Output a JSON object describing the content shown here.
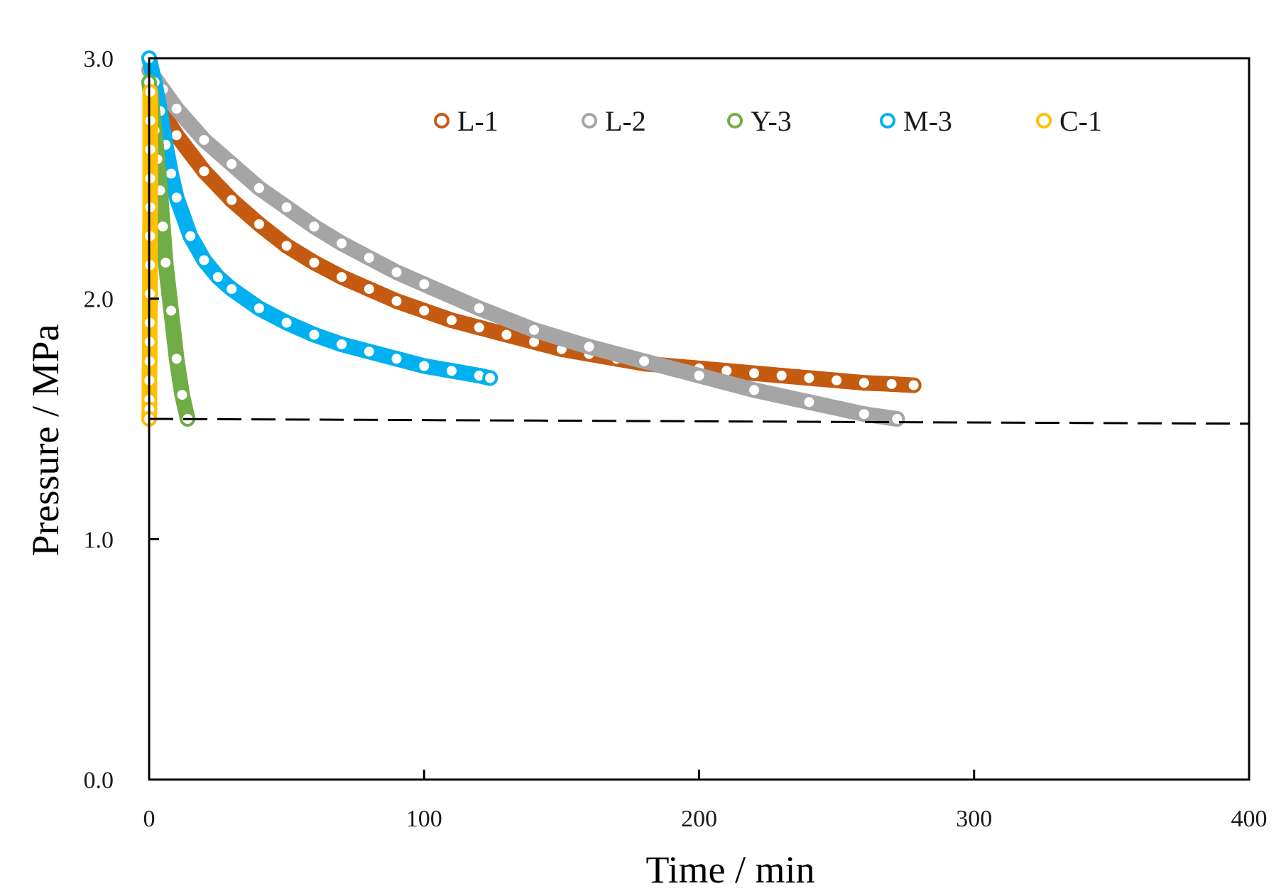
{
  "chart_data": {
    "type": "scatter",
    "title": "",
    "xlabel": "Time / min",
    "ylabel": "Pressure / MPa",
    "xlim": [
      0,
      400
    ],
    "ylim": [
      0,
      3.0
    ],
    "xticks": [
      0,
      100,
      200,
      300,
      400
    ],
    "xtick_labels": [
      "0",
      "100",
      "200",
      "300",
      "400"
    ],
    "yticks": [
      0,
      1.0,
      2.0,
      3.0
    ],
    "ytick_labels": [
      "0.0",
      "1.0",
      "2.0",
      "3.0"
    ],
    "grid": false,
    "legend_position": "top-center",
    "reference_line": {
      "style": "dashed",
      "y_start": 1.5,
      "y_end": 1.48,
      "x_range": [
        0,
        400
      ]
    },
    "series": [
      {
        "name": "L-1",
        "color": "#C55A11",
        "x": [
          0,
          5,
          10,
          20,
          30,
          40,
          50,
          60,
          70,
          80,
          90,
          100,
          110,
          120,
          130,
          140,
          150,
          160,
          170,
          180,
          190,
          200,
          210,
          220,
          230,
          240,
          250,
          260,
          270,
          278
        ],
        "y": [
          2.9,
          2.77,
          2.68,
          2.53,
          2.41,
          2.31,
          2.22,
          2.15,
          2.09,
          2.04,
          1.99,
          1.95,
          1.91,
          1.88,
          1.85,
          1.82,
          1.79,
          1.77,
          1.75,
          1.73,
          1.72,
          1.71,
          1.7,
          1.69,
          1.68,
          1.67,
          1.66,
          1.65,
          1.645,
          1.64
        ]
      },
      {
        "name": "L-2",
        "color": "#A5A5A5",
        "x": [
          0,
          5,
          10,
          20,
          30,
          40,
          50,
          60,
          70,
          80,
          90,
          100,
          120,
          140,
          160,
          180,
          200,
          220,
          240,
          260,
          272
        ],
        "y": [
          2.95,
          2.87,
          2.79,
          2.66,
          2.56,
          2.46,
          2.38,
          2.3,
          2.23,
          2.17,
          2.11,
          2.06,
          1.96,
          1.87,
          1.8,
          1.74,
          1.68,
          1.62,
          1.57,
          1.52,
          1.5
        ]
      },
      {
        "name": "Y-3",
        "color": "#70AD47",
        "x": [
          0,
          1,
          2,
          3,
          4,
          5,
          6,
          8,
          10,
          12,
          14
        ],
        "y": [
          2.9,
          2.8,
          2.7,
          2.58,
          2.45,
          2.3,
          2.15,
          1.95,
          1.75,
          1.6,
          1.5
        ]
      },
      {
        "name": "M-3",
        "color": "#00B0F0",
        "x": [
          0,
          2,
          4,
          6,
          8,
          10,
          15,
          20,
          25,
          30,
          40,
          50,
          60,
          70,
          80,
          90,
          100,
          110,
          120,
          124
        ],
        "y": [
          3.0,
          2.9,
          2.78,
          2.64,
          2.52,
          2.42,
          2.26,
          2.16,
          2.09,
          2.04,
          1.96,
          1.9,
          1.85,
          1.81,
          1.78,
          1.75,
          1.72,
          1.7,
          1.68,
          1.67
        ]
      },
      {
        "name": "C-1",
        "color": "#FFC000",
        "x": [
          0.4,
          0.4,
          0.4,
          0.4,
          0.4,
          0.3,
          0.3,
          0.3,
          0.2,
          0.2,
          0.2,
          0.1,
          0.1,
          0.1,
          0.0
        ],
        "y": [
          2.86,
          2.74,
          2.62,
          2.5,
          2.38,
          2.26,
          2.14,
          2.02,
          1.9,
          1.82,
          1.74,
          1.66,
          1.58,
          1.54,
          1.5
        ]
      }
    ]
  }
}
